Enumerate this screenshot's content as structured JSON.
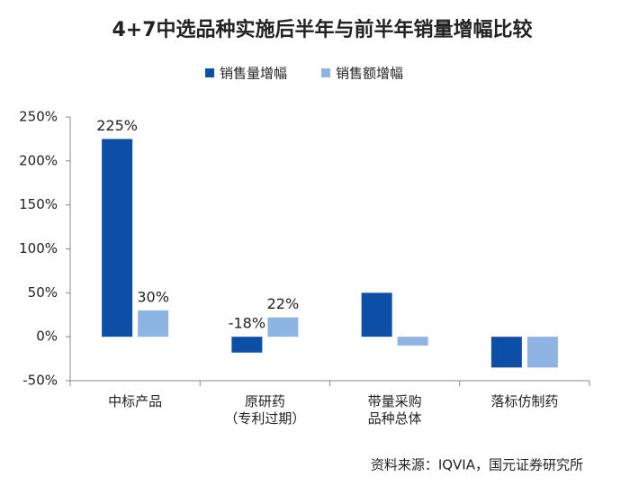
{
  "chart_data": {
    "type": "bar",
    "title": "4+7中选品种实施后半年与前半年销量增幅比较",
    "categories": [
      "中标产品",
      "原研药\n（专利过期）",
      "带量采购\n品种总体",
      "落标仿制药"
    ],
    "series": [
      {
        "name": "销售量增幅",
        "color": "#0d4ea6",
        "values": [
          225,
          -18,
          50,
          -35
        ],
        "value_labels": [
          "225%",
          "-18%",
          null,
          null
        ]
      },
      {
        "name": "销售额增幅",
        "color": "#8db4e2",
        "values": [
          30,
          22,
          -10,
          -35
        ],
        "value_labels": [
          "30%",
          "22%",
          null,
          null
        ]
      }
    ],
    "ylim": [
      -50,
      250
    ],
    "yticks": [
      {
        "value": -50,
        "label": "-50%"
      },
      {
        "value": 0,
        "label": "0%"
      },
      {
        "value": 50,
        "label": "50%"
      },
      {
        "value": 100,
        "label": "100%"
      },
      {
        "value": 150,
        "label": "150%"
      },
      {
        "value": 200,
        "label": "200%"
      },
      {
        "value": 250,
        "label": "250%"
      }
    ],
    "legend": "top",
    "source": "资料来源：IQVIA，国元证券研究所"
  }
}
